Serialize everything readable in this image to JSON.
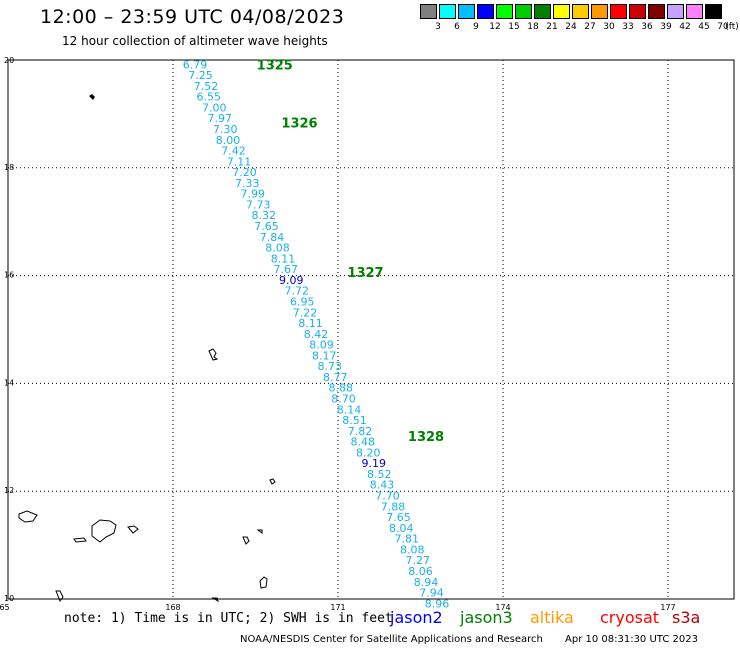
{
  "header": {
    "title": "12:00 – 23:59 UTC 04/08/2023",
    "subtitle": "12 hour collection of altimeter wave heights"
  },
  "legend": {
    "colors": [
      "#808080",
      "#00ffff",
      "#00bfff",
      "#0000ff",
      "#00ff00",
      "#00cc00",
      "#008000",
      "#ffff00",
      "#ffcc00",
      "#ff9900",
      "#ff0000",
      "#cc0000",
      "#800000",
      "#c8a0ff",
      "#ff80ff",
      "#000000"
    ],
    "labels": [
      "3",
      "6",
      "9",
      "12",
      "15",
      "18",
      "21",
      "24",
      "27",
      "30",
      "33",
      "36",
      "39",
      "42",
      "45",
      "70"
    ],
    "unit": "(ft)"
  },
  "axes": {
    "lon_labels": [
      "165",
      "168",
      "171",
      "174",
      "177"
    ],
    "lat_labels": [
      "20",
      "18",
      "16",
      "14",
      "12",
      "10"
    ]
  },
  "chart_data": {
    "type": "scatter",
    "x_ticks": [
      165,
      168,
      171,
      174,
      177
    ],
    "y_ticks": [
      10,
      12,
      14,
      16,
      18,
      20
    ],
    "xlim": [
      165,
      178.2
    ],
    "ylim": [
      10,
      20
    ],
    "grid": true,
    "track_colors": {
      "cyan": "#1ab2e8",
      "blue": "#0000cc"
    },
    "pass_color": "#008000",
    "passes": [
      {
        "label": "1325",
        "lon": 169.85,
        "lat": 19.92
      },
      {
        "label": "1326",
        "lon": 170.3,
        "lat": 18.84
      },
      {
        "label": "1327",
        "lon": 171.5,
        "lat": 16.07
      },
      {
        "label": "1328",
        "lon": 172.6,
        "lat": 13.02
      }
    ],
    "points": [
      {
        "v": "6.79",
        "lon": 168.4,
        "lat": 19.92,
        "c": "cyan"
      },
      {
        "v": "7.25",
        "lon": 168.5,
        "lat": 19.72,
        "c": "cyan"
      },
      {
        "v": "7.52",
        "lon": 168.6,
        "lat": 19.52,
        "c": "cyan"
      },
      {
        "v": "6.55",
        "lon": 168.65,
        "lat": 19.32,
        "c": "cyan"
      },
      {
        "v": "7.00",
        "lon": 168.75,
        "lat": 19.12,
        "c": "cyan"
      },
      {
        "v": "7.97",
        "lon": 168.85,
        "lat": 18.92,
        "c": "cyan"
      },
      {
        "v": "7.30",
        "lon": 168.95,
        "lat": 18.72,
        "c": "cyan"
      },
      {
        "v": "8.00",
        "lon": 169.0,
        "lat": 18.52,
        "c": "cyan"
      },
      {
        "v": "7.42",
        "lon": 169.1,
        "lat": 18.32,
        "c": "cyan"
      },
      {
        "v": "7.11",
        "lon": 169.2,
        "lat": 18.12,
        "c": "cyan"
      },
      {
        "v": "7.20",
        "lon": 169.3,
        "lat": 17.92,
        "c": "cyan"
      },
      {
        "v": "7.33",
        "lon": 169.35,
        "lat": 17.72,
        "c": "cyan"
      },
      {
        "v": "7.99",
        "lon": 169.45,
        "lat": 17.52,
        "c": "cyan"
      },
      {
        "v": "7.73",
        "lon": 169.55,
        "lat": 17.32,
        "c": "cyan"
      },
      {
        "v": "8.32",
        "lon": 169.65,
        "lat": 17.12,
        "c": "cyan"
      },
      {
        "v": "7.65",
        "lon": 169.7,
        "lat": 16.92,
        "c": "cyan"
      },
      {
        "v": "7.84",
        "lon": 169.8,
        "lat": 16.72,
        "c": "cyan"
      },
      {
        "v": "8.08",
        "lon": 169.9,
        "lat": 16.52,
        "c": "cyan"
      },
      {
        "v": "8.11",
        "lon": 170.0,
        "lat": 16.32,
        "c": "cyan"
      },
      {
        "v": "7.67",
        "lon": 170.05,
        "lat": 16.12,
        "c": "cyan"
      },
      {
        "v": "9.09",
        "lon": 170.15,
        "lat": 15.92,
        "c": "blue"
      },
      {
        "v": "7.72",
        "lon": 170.25,
        "lat": 15.72,
        "c": "cyan"
      },
      {
        "v": "6.95",
        "lon": 170.35,
        "lat": 15.52,
        "c": "cyan"
      },
      {
        "v": "7.22",
        "lon": 170.4,
        "lat": 15.32,
        "c": "cyan"
      },
      {
        "v": "8.11",
        "lon": 170.5,
        "lat": 15.12,
        "c": "cyan"
      },
      {
        "v": "8.42",
        "lon": 170.6,
        "lat": 14.92,
        "c": "cyan"
      },
      {
        "v": "8.09",
        "lon": 170.7,
        "lat": 14.72,
        "c": "cyan"
      },
      {
        "v": "8.17",
        "lon": 170.75,
        "lat": 14.52,
        "c": "cyan"
      },
      {
        "v": "8.73",
        "lon": 170.85,
        "lat": 14.32,
        "c": "cyan"
      },
      {
        "v": "8.77",
        "lon": 170.95,
        "lat": 14.12,
        "c": "cyan"
      },
      {
        "v": "8.88",
        "lon": 171.05,
        "lat": 13.92,
        "c": "cyan"
      },
      {
        "v": "8.70",
        "lon": 171.1,
        "lat": 13.72,
        "c": "cyan"
      },
      {
        "v": "8.14",
        "lon": 171.2,
        "lat": 13.52,
        "c": "cyan"
      },
      {
        "v": "8.51",
        "lon": 171.3,
        "lat": 13.32,
        "c": "cyan"
      },
      {
        "v": "7.82",
        "lon": 171.4,
        "lat": 13.12,
        "c": "cyan"
      },
      {
        "v": "8.48",
        "lon": 171.45,
        "lat": 12.92,
        "c": "cyan"
      },
      {
        "v": "8.20",
        "lon": 171.55,
        "lat": 12.72,
        "c": "cyan"
      },
      {
        "v": "9.19",
        "lon": 171.65,
        "lat": 12.52,
        "c": "blue"
      },
      {
        "v": "8.52",
        "lon": 171.75,
        "lat": 12.32,
        "c": "cyan"
      },
      {
        "v": "8.43",
        "lon": 171.8,
        "lat": 12.12,
        "c": "cyan"
      },
      {
        "v": "7.70",
        "lon": 171.9,
        "lat": 11.92,
        "c": "cyan"
      },
      {
        "v": "7.88",
        "lon": 172.0,
        "lat": 11.72,
        "c": "cyan"
      },
      {
        "v": "7.65",
        "lon": 172.1,
        "lat": 11.52,
        "c": "cyan"
      },
      {
        "v": "8.04",
        "lon": 172.15,
        "lat": 11.32,
        "c": "cyan"
      },
      {
        "v": "7.81",
        "lon": 172.25,
        "lat": 11.12,
        "c": "cyan"
      },
      {
        "v": "8.08",
        "lon": 172.35,
        "lat": 10.92,
        "c": "cyan"
      },
      {
        "v": "7.27",
        "lon": 172.45,
        "lat": 10.72,
        "c": "cyan"
      },
      {
        "v": "8.06",
        "lon": 172.5,
        "lat": 10.52,
        "c": "cyan"
      },
      {
        "v": "8.94",
        "lon": 172.6,
        "lat": 10.32,
        "c": "cyan"
      },
      {
        "v": "7.94",
        "lon": 172.7,
        "lat": 10.12,
        "c": "cyan"
      },
      {
        "v": "8.96",
        "lon": 172.8,
        "lat": 9.92,
        "c": "cyan"
      }
    ]
  },
  "footer": {
    "note": "note: 1) Time is in UTC; 2) SWH is in feet",
    "satellites": [
      {
        "name": "jason2",
        "color": "#0000ff"
      },
      {
        "name": "jason3",
        "color": "#008000"
      },
      {
        "name": "altika",
        "color": "#ff9900"
      },
      {
        "name": "cryosat",
        "color": "#ff0000"
      },
      {
        "name": "s3a",
        "color": "#c00000"
      }
    ],
    "credit": "NOAA/NESDIS Center for Satellite Applications and Research",
    "timestamp": "Apr 10 08:31:30 UTC 2023"
  }
}
